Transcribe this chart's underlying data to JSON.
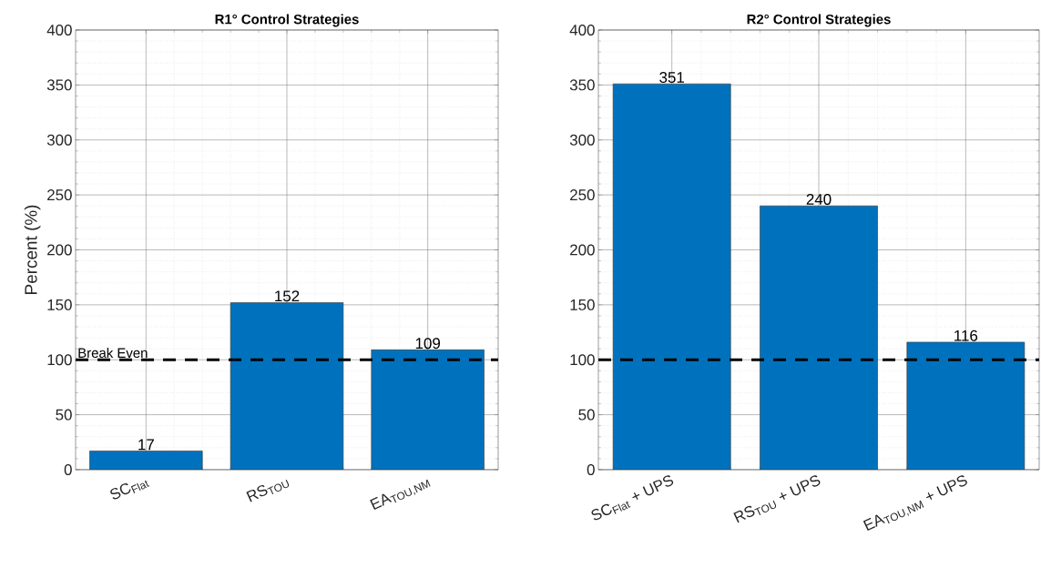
{
  "chart_data": [
    {
      "type": "bar",
      "title": "R1° Control Strategies",
      "ylabel": "Percent (%)",
      "categories": [
        "SC$_{Flat}$",
        "RS$_{TOU}$",
        "EA$_{TOU,NM}$"
      ],
      "values": [
        17,
        152,
        109
      ],
      "color": "#0072bd",
      "ylim": [
        0,
        400
      ],
      "yticks": [
        0,
        50,
        100,
        150,
        200,
        250,
        300,
        350,
        400
      ],
      "grid": true,
      "data_labels": true,
      "ref_lines": [
        {
          "axis": "y",
          "value": 100,
          "label": "Break Even",
          "color": "#000000",
          "line_style": "dashed"
        }
      ]
    },
    {
      "type": "bar",
      "title": "R2° Control Strategies",
      "categories": [
        "SC$_{Flat}$ + UPS",
        "RS$_{TOU}$ + UPS",
        "EA$_{TOU,NM}$ + UPS"
      ],
      "values": [
        351,
        240,
        116
      ],
      "color": "#0072bd",
      "ylim": [
        0,
        400
      ],
      "yticks": [
        0,
        50,
        100,
        150,
        200,
        250,
        300,
        350,
        400
      ],
      "grid": true,
      "data_labels": true,
      "ref_lines": [
        {
          "axis": "y",
          "value": 100,
          "color": "#000000",
          "line_style": "dashed"
        }
      ]
    }
  ]
}
